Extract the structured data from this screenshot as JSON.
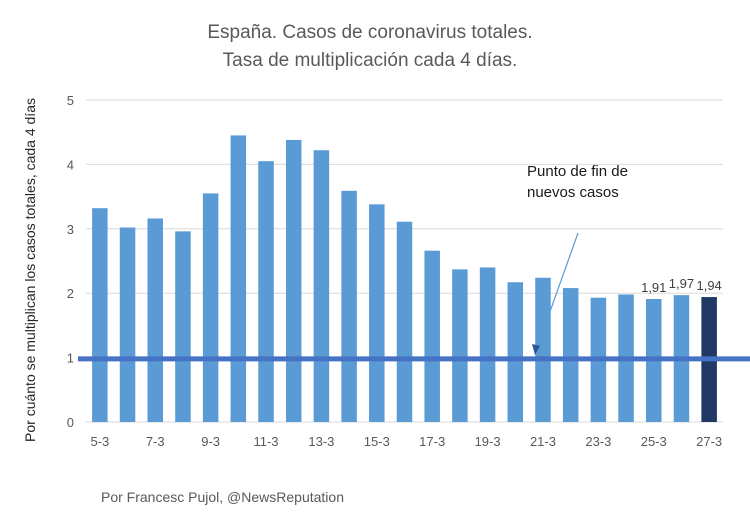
{
  "chart_data": {
    "type": "bar",
    "title": [
      "España. Casos de coronavirus totales.",
      "Tasa de multiplicación cada 4 días."
    ],
    "ylabel": "Por cuánto se multiplican los casos totales, cada 4 días",
    "xlabel": "",
    "ylim": [
      0,
      5
    ],
    "yticks": [
      "0",
      "1",
      "2",
      "3",
      "4",
      "5"
    ],
    "categories": [
      "5-3",
      "6-3",
      "7-3",
      "8-3",
      "9-3",
      "10-3",
      "11-3",
      "12-3",
      "13-3",
      "14-3",
      "15-3",
      "16-3",
      "17-3",
      "18-3",
      "19-3",
      "20-3",
      "21-3",
      "22-3",
      "23-3",
      "24-3",
      "25-3",
      "26-3",
      "27-3"
    ],
    "xtick_labels": [
      "5-3",
      "7-3",
      "9-3",
      "11-3",
      "13-3",
      "15-3",
      "17-3",
      "19-3",
      "21-3",
      "23-3",
      "25-3",
      "27-3"
    ],
    "values": [
      3.32,
      3.02,
      3.16,
      2.96,
      3.55,
      4.45,
      4.05,
      4.38,
      4.22,
      3.59,
      3.38,
      3.11,
      2.66,
      2.37,
      2.4,
      2.17,
      2.24,
      2.08,
      1.93,
      1.98,
      1.91,
      1.97,
      1.94
    ],
    "data_labels": [
      {
        "index": 20,
        "text": "1,91"
      },
      {
        "index": 21,
        "text": "1,97"
      },
      {
        "index": 22,
        "text": "1,94"
      }
    ],
    "highlight_index": 22,
    "reference_line": {
      "y": 0.98
    },
    "annotation": {
      "lines": [
        "Punto de fin de",
        "nuevos casos"
      ]
    },
    "grid": true,
    "colors": {
      "bar": "#5b9bd5",
      "highlight": "#1f3864",
      "reference_line": "#4472c4",
      "grid": "#d9d9d9"
    }
  },
  "credit": "Por Francesc Pujol, @NewsReputation"
}
